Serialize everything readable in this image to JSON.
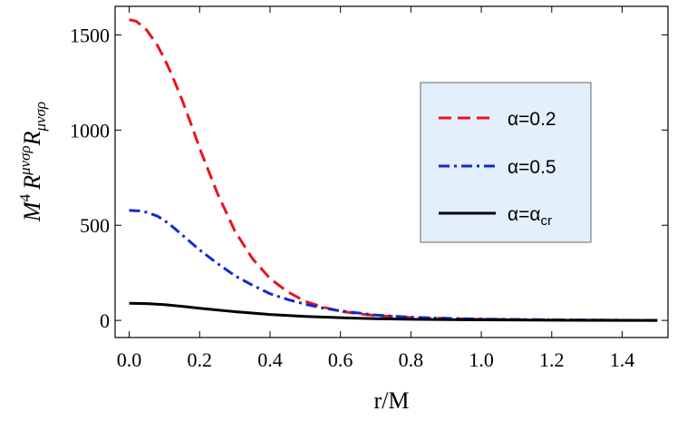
{
  "chart_data": {
    "type": "line",
    "title": "",
    "xlabel": "r/M",
    "ylabel": {
      "base": "M",
      "base_exp": "4",
      "r1": "R",
      "r1_sup": "μνσρ",
      "r2": "R",
      "r2_sub": "μνσρ"
    },
    "xlim": [
      -0.04,
      1.53
    ],
    "ylim": [
      -90,
      1650
    ],
    "x_ticks": [
      0.0,
      0.2,
      0.4,
      0.6,
      0.8,
      1.0,
      1.2,
      1.4
    ],
    "x_tick_labels": [
      "0.0",
      "0.2",
      "0.4",
      "0.6",
      "0.8",
      "1.0",
      "1.2",
      "1.4"
    ],
    "y_ticks": [
      0,
      500,
      1000,
      1500
    ],
    "y_tick_labels": [
      "0",
      "500",
      "1000",
      "1500"
    ],
    "grid": false,
    "legend_position": "right",
    "series": [
      {
        "name": "α=0.2",
        "legend_parts": {
          "main": "α=0.2",
          "sub": ""
        },
        "color": "#e8141e",
        "dash": "dashed",
        "x": [
          0.0,
          0.02,
          0.05,
          0.08,
          0.1,
          0.12,
          0.15,
          0.18,
          0.2,
          0.25,
          0.3,
          0.35,
          0.4,
          0.45,
          0.5,
          0.55,
          0.6,
          0.65,
          0.7,
          0.8,
          0.9,
          1.0,
          1.1,
          1.2,
          1.3,
          1.4,
          1.5
        ],
        "y": [
          1580,
          1572,
          1525,
          1445,
          1375,
          1295,
          1160,
          1010,
          905,
          670,
          470,
          325,
          220,
          150,
          100,
          70,
          48,
          35,
          25,
          15,
          10,
          6,
          4,
          3,
          2,
          1,
          0
        ]
      },
      {
        "name": "α=0.5",
        "legend_parts": {
          "main": "α=0.5",
          "sub": ""
        },
        "color": "#1428d2",
        "dash": "dashdot",
        "x": [
          0.0,
          0.03,
          0.05,
          0.08,
          0.1,
          0.12,
          0.15,
          0.2,
          0.25,
          0.3,
          0.35,
          0.4,
          0.45,
          0.5,
          0.55,
          0.6,
          0.7,
          0.8,
          0.9,
          1.0,
          1.1,
          1.2,
          1.3,
          1.4,
          1.5
        ],
        "y": [
          578,
          575,
          568,
          548,
          525,
          497,
          450,
          370,
          300,
          235,
          185,
          140,
          110,
          85,
          65,
          50,
          28,
          17,
          11,
          7,
          5,
          3,
          2,
          1,
          0
        ]
      },
      {
        "name": "α=α_cr",
        "legend_parts": {
          "main": "α=α",
          "sub": "cr"
        },
        "color": "#000000",
        "dash": "solid",
        "x": [
          0.0,
          0.05,
          0.1,
          0.15,
          0.2,
          0.3,
          0.4,
          0.5,
          0.6,
          0.7,
          0.8,
          0.9,
          1.0,
          1.2,
          1.4,
          1.5
        ],
        "y": [
          90,
          88,
          83,
          74,
          64,
          46,
          31,
          21,
          14,
          9,
          6,
          4,
          3,
          1,
          0,
          0
        ]
      }
    ]
  }
}
